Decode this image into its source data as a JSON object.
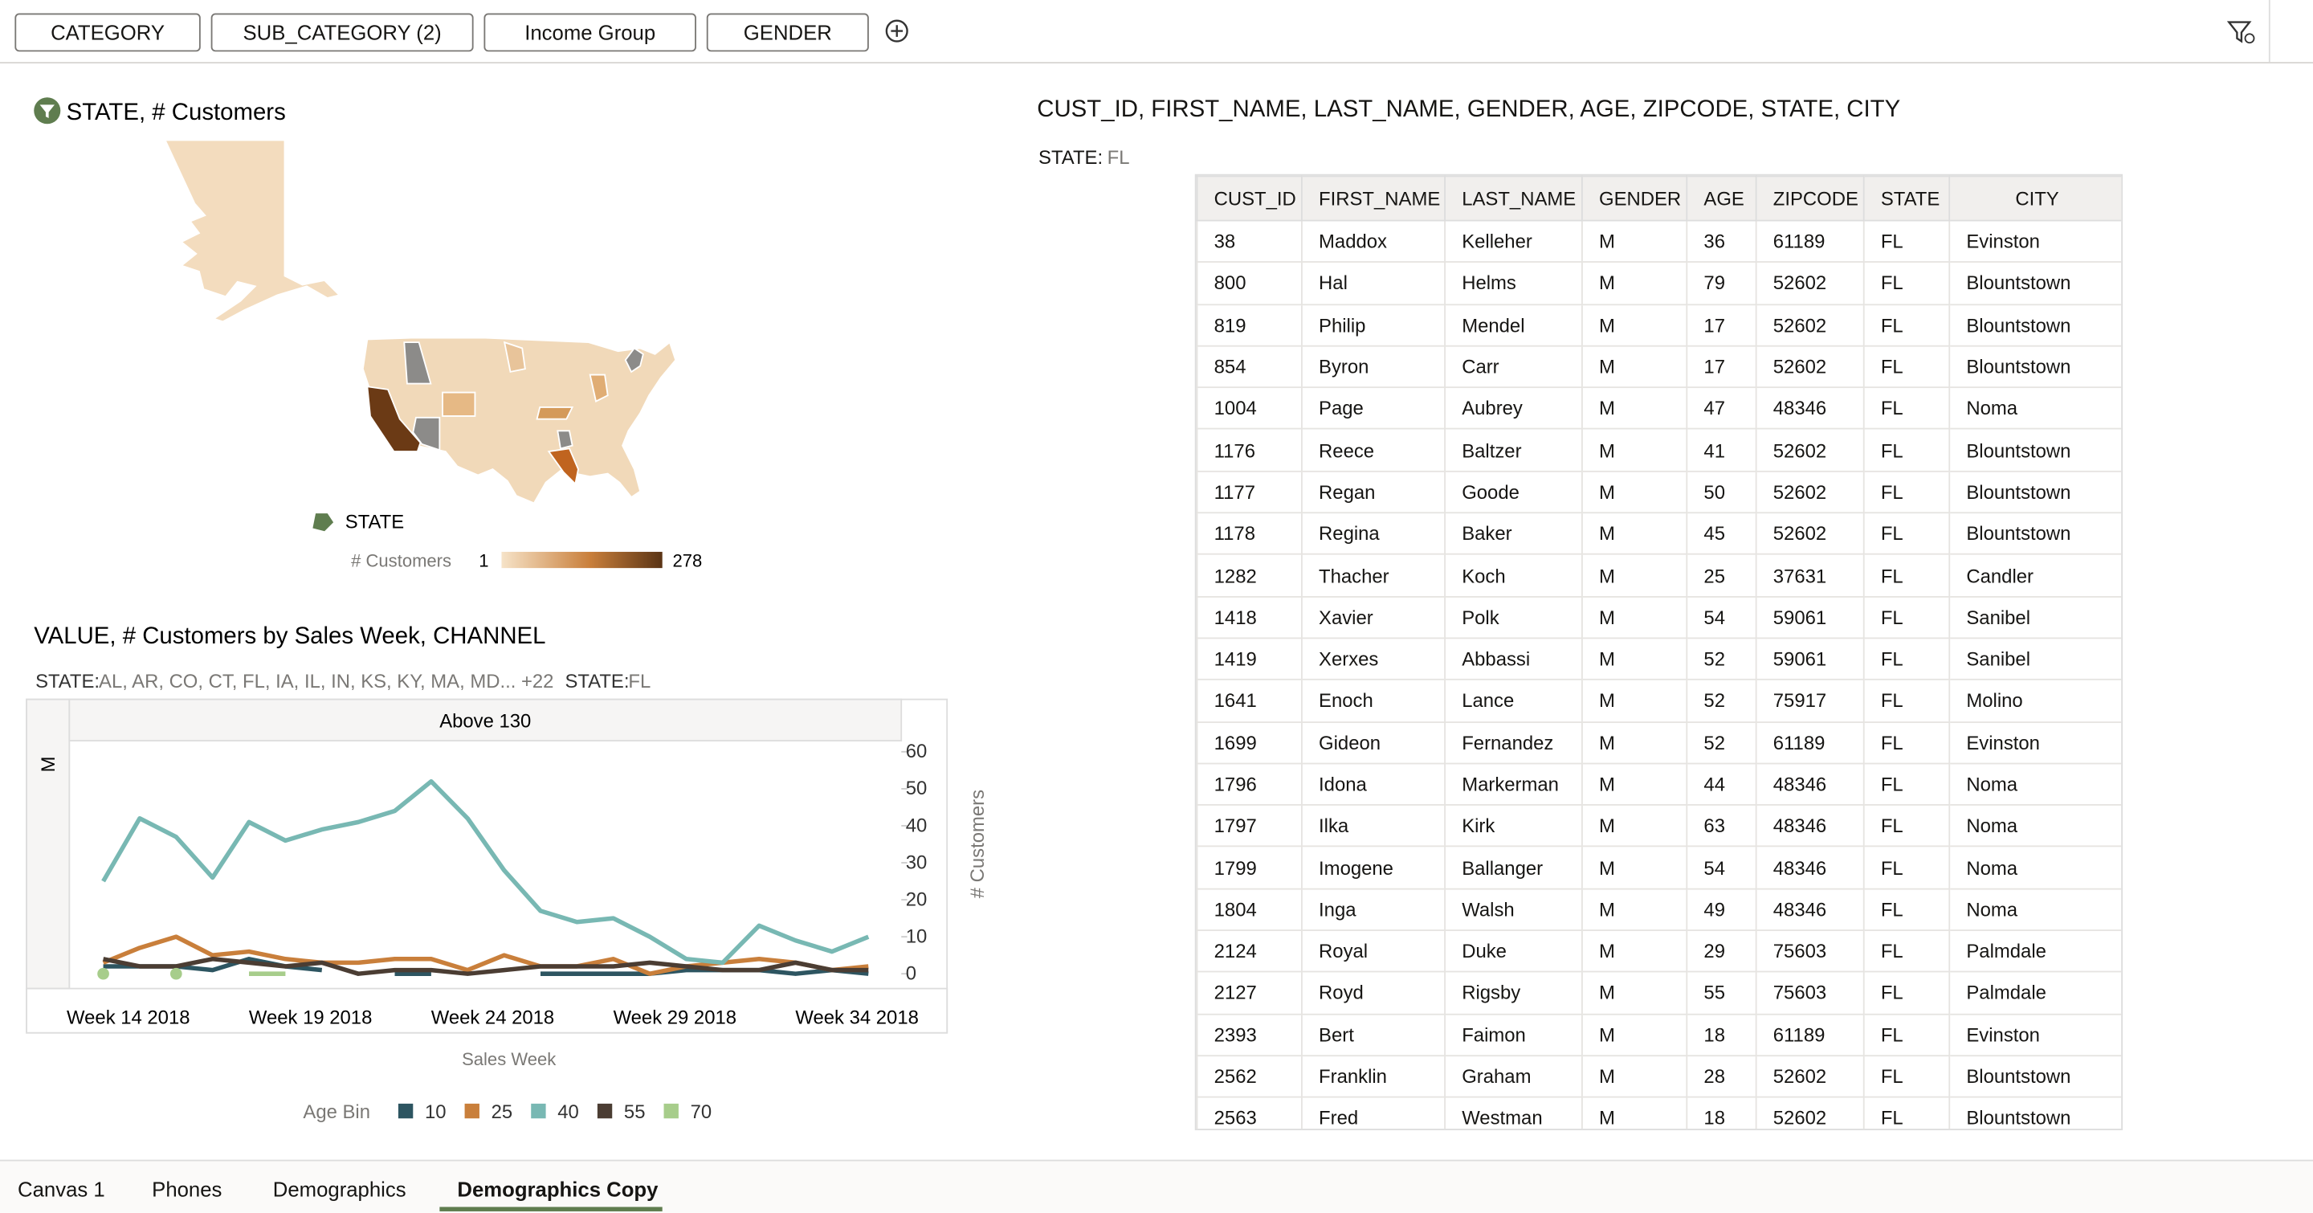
{
  "filter_bar": {
    "chips": [
      "CATEGORY",
      "SUB_CATEGORY (2)",
      "Income Group",
      "GENDER"
    ]
  },
  "map": {
    "title": "STATE, # Customers",
    "legend": {
      "shape_label": "STATE",
      "color_label": "# Customers",
      "min": 1,
      "max": 278
    }
  },
  "table": {
    "title": "CUST_ID, FIRST_NAME, LAST_NAME, GENDER, AGE, ZIPCODE, STATE, CITY",
    "filter": {
      "label": "STATE:",
      "value": "FL"
    },
    "columns": [
      "CUST_ID",
      "FIRST_NAME",
      "LAST_NAME",
      "GENDER",
      "AGE",
      "ZIPCODE",
      "STATE",
      "CITY"
    ],
    "rows": [
      [
        38,
        "Maddox",
        "Kelleher",
        "M",
        36,
        61189,
        "FL",
        "Evinston"
      ],
      [
        800,
        "Hal",
        "Helms",
        "M",
        79,
        52602,
        "FL",
        "Blountstown"
      ],
      [
        819,
        "Philip",
        "Mendel",
        "M",
        17,
        52602,
        "FL",
        "Blountstown"
      ],
      [
        854,
        "Byron",
        "Carr",
        "M",
        17,
        52602,
        "FL",
        "Blountstown"
      ],
      [
        1004,
        "Page",
        "Aubrey",
        "M",
        47,
        48346,
        "FL",
        "Noma"
      ],
      [
        1176,
        "Reece",
        "Baltzer",
        "M",
        41,
        52602,
        "FL",
        "Blountstown"
      ],
      [
        1177,
        "Regan",
        "Goode",
        "M",
        50,
        52602,
        "FL",
        "Blountstown"
      ],
      [
        1178,
        "Regina",
        "Baker",
        "M",
        45,
        52602,
        "FL",
        "Blountstown"
      ],
      [
        1282,
        "Thacher",
        "Koch",
        "M",
        25,
        37631,
        "FL",
        "Candler"
      ],
      [
        1418,
        "Xavier",
        "Polk",
        "M",
        54,
        59061,
        "FL",
        "Sanibel"
      ],
      [
        1419,
        "Xerxes",
        "Abbassi",
        "M",
        52,
        59061,
        "FL",
        "Sanibel"
      ],
      [
        1641,
        "Enoch",
        "Lance",
        "M",
        52,
        75917,
        "FL",
        "Molino"
      ],
      [
        1699,
        "Gideon",
        "Fernandez",
        "M",
        52,
        61189,
        "FL",
        "Evinston"
      ],
      [
        1796,
        "Idona",
        "Markerman",
        "M",
        44,
        48346,
        "FL",
        "Noma"
      ],
      [
        1797,
        "Ilka",
        "Kirk",
        "M",
        63,
        48346,
        "FL",
        "Noma"
      ],
      [
        1799,
        "Imogene",
        "Ballanger",
        "M",
        54,
        48346,
        "FL",
        "Noma"
      ],
      [
        1804,
        "Inga",
        "Walsh",
        "M",
        49,
        48346,
        "FL",
        "Noma"
      ],
      [
        2124,
        "Royal",
        "Duke",
        "M",
        29,
        75603,
        "FL",
        "Palmdale"
      ],
      [
        2127,
        "Royd",
        "Rigsby",
        "M",
        55,
        75603,
        "FL",
        "Palmdale"
      ],
      [
        2393,
        "Bert",
        "Faimon",
        "M",
        18,
        61189,
        "FL",
        "Evinston"
      ],
      [
        2562,
        "Franklin",
        "Graham",
        "M",
        28,
        52602,
        "FL",
        "Blountstown"
      ],
      [
        2563,
        "Fred",
        "Westman",
        "M",
        18,
        52602,
        "FL",
        "Blountstown"
      ]
    ]
  },
  "chart_data": {
    "type": "line",
    "title": "VALUE, # Customers by Sales Week, CHANNEL",
    "filters": [
      {
        "label": "STATE:",
        "value": "AL, AR, CO, CT, FL, IA, IL, IN, KS, KY, MA, MD... +22"
      },
      {
        "label": "STATE:",
        "value": "FL"
      }
    ],
    "facet_column": "Above 130",
    "facet_row": "M",
    "x_label": "Sales Week",
    "y_label": "# Customers",
    "legend_title": "Age Bin",
    "categories": [
      "Week 14 2018",
      null,
      null,
      null,
      null,
      "Week 19 2018",
      null,
      null,
      null,
      null,
      "Week 24 2018",
      null,
      null,
      null,
      null,
      "Week 29 2018",
      null,
      null,
      null,
      null,
      "Week 34 2018",
      null
    ],
    "series": [
      {
        "name": "10",
        "color": "#2d5561",
        "values": [
          2,
          2,
          2,
          1,
          4,
          2,
          1,
          null,
          0,
          0,
          null,
          null,
          0,
          0,
          0,
          0,
          1,
          1,
          1,
          0,
          1,
          0
        ]
      },
      {
        "name": "25",
        "color": "#c97f3b",
        "values": [
          3,
          7,
          10,
          5,
          6,
          4,
          3,
          3,
          4,
          4,
          1,
          5,
          2,
          2,
          4,
          0,
          2,
          3,
          4,
          3,
          1,
          2
        ]
      },
      {
        "name": "40",
        "color": "#78b8b3",
        "values": [
          25,
          42,
          37,
          26,
          41,
          36,
          39,
          41,
          44,
          52,
          42,
          28,
          17,
          14,
          15,
          10,
          4,
          3,
          13,
          9,
          6,
          10
        ]
      },
      {
        "name": "55",
        "color": "#4b3d33",
        "values": [
          4,
          2,
          2,
          4,
          3,
          2,
          3,
          0,
          1,
          1,
          0,
          1,
          2,
          2,
          2,
          3,
          2,
          1,
          1,
          3,
          1,
          1
        ]
      },
      {
        "name": "70",
        "color": "#a7cd8b",
        "values": [
          0,
          null,
          0,
          null,
          0,
          0,
          null,
          null,
          null,
          null,
          null,
          null,
          null,
          null,
          null,
          null,
          null,
          null,
          null,
          null,
          null,
          null
        ]
      }
    ],
    "ylim": [
      -4,
      63
    ],
    "yticks": [
      0,
      10,
      20,
      30,
      40,
      50,
      60
    ],
    "y_axis_side": "right"
  },
  "tabs": {
    "items": [
      "Canvas 1",
      "Phones",
      "Demographics",
      "Demographics Copy"
    ],
    "active": 3
  }
}
